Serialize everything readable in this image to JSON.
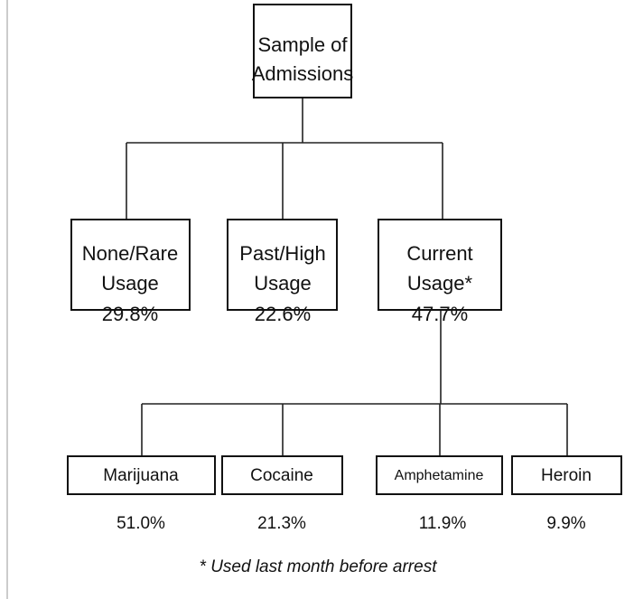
{
  "root": {
    "label_lines": [
      "Sample of",
      "Admissions"
    ]
  },
  "usage_groups": [
    {
      "label_lines": [
        "None/Rare",
        "Usage"
      ],
      "share": "29.8%"
    },
    {
      "label_lines": [
        "Past/High",
        "Usage"
      ],
      "share": "22.6%"
    },
    {
      "label_lines": [
        "Current",
        "Usage*"
      ],
      "share": "47.7%"
    }
  ],
  "drugs": [
    {
      "label": "Marijuana",
      "share": "51.0%"
    },
    {
      "label": "Cocaine",
      "share": "21.3%"
    },
    {
      "label": "Amphetamine",
      "share": "11.9%"
    },
    {
      "label": "Heroin",
      "share": "9.9%"
    }
  ],
  "footnote": "* Used last month before arrest"
}
